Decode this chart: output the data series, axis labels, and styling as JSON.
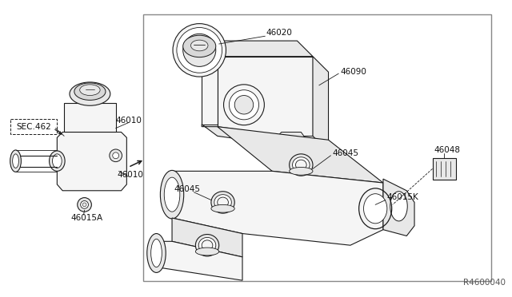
{
  "bg_color": "#ffffff",
  "lc": "#1a1a1a",
  "border_color": "#555555",
  "fill_light": "#f5f5f5",
  "fill_mid": "#e8e8e8",
  "fill_dark": "#d8d8d8",
  "watermark": "R4600040",
  "labels": {
    "46010_top": "46010",
    "46010_bottom": "46010",
    "46015A": "46015A",
    "SEC462": "SEC.462",
    "46020": "46020",
    "46090": "46090",
    "46045_top": "46045",
    "46045_bottom": "46045",
    "46048": "46048",
    "46015K": "46015K"
  },
  "font_size": 7.5,
  "watermark_size": 7.5
}
